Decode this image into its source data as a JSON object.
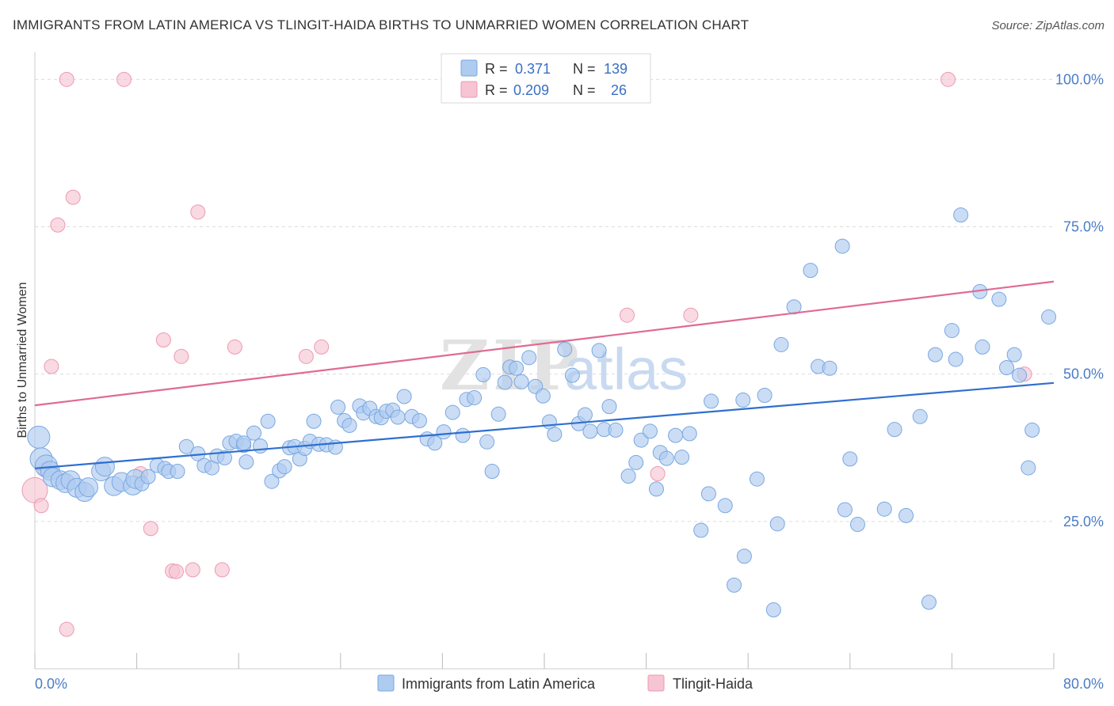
{
  "title": "IMMIGRANTS FROM LATIN AMERICA VS TLINGIT-HAIDA BIRTHS TO UNMARRIED WOMEN CORRELATION CHART",
  "source": "Source: ZipAtlas.com",
  "colors": {
    "blue": "#7aa7e0",
    "blue_fill": "#aecbf0",
    "blue_line": "#2f6fd0",
    "pink": "#ec9ab3",
    "pink_fill": "#f6c4d3",
    "pink_line": "#e06a93",
    "tick": "#4a7cc7"
  },
  "legend": {
    "r_label": "R =",
    "n_label": "N =",
    "blue_r": "0.371",
    "blue_n": "139",
    "pink_r": "0.209",
    "pink_n": "26"
  },
  "bottom_legend": {
    "blue": "Immigrants from Latin America",
    "pink": "Tlingit-Haida"
  },
  "watermark": {
    "zip": "ZIP",
    "atlas": "atlas"
  },
  "chart_data": {
    "type": "scatter",
    "title": "IMMIGRANTS FROM LATIN AMERICA VS TLINGIT-HAIDA BIRTHS TO UNMARRIED WOMEN CORRELATION CHART",
    "xlabel": "",
    "ylabel": "Births to Unmarried Women",
    "xlim": [
      0,
      80
    ],
    "ylim": [
      0,
      103
    ],
    "x_tick_labels": [
      "0.0%",
      "80.0%"
    ],
    "y_ticks": [
      25,
      50,
      75,
      100
    ],
    "y_tick_labels": [
      "25.0%",
      "50.0%",
      "75.0%",
      "100.0%"
    ],
    "grid": "horizontal dashed",
    "series": [
      {
        "name": "Immigrants from Latin America",
        "trend": [
          [
            0,
            34
          ],
          [
            80,
            48.5
          ]
        ],
        "points": [
          [
            0.3,
            39.3
          ],
          [
            0.5,
            35.6
          ],
          [
            0.9,
            34.4
          ],
          [
            1.2,
            33.6
          ],
          [
            1.4,
            32.5
          ],
          [
            2.0,
            32.0
          ],
          [
            2.4,
            31.5
          ],
          [
            2.8,
            32.0
          ],
          [
            3.3,
            30.7
          ],
          [
            3.9,
            30.0
          ],
          [
            4.2,
            30.8
          ],
          [
            5.2,
            33.5
          ],
          [
            5.5,
            34.3
          ],
          [
            6.2,
            31.0
          ],
          [
            6.8,
            31.7
          ],
          [
            7.7,
            31.1
          ],
          [
            7.9,
            32.2
          ],
          [
            8.4,
            31.4
          ],
          [
            8.9,
            32.6
          ],
          [
            9.6,
            34.5
          ],
          [
            10.2,
            34.0
          ],
          [
            10.5,
            33.5
          ],
          [
            11.2,
            33.5
          ],
          [
            11.9,
            37.7
          ],
          [
            12.8,
            36.5
          ],
          [
            13.3,
            34.5
          ],
          [
            13.9,
            34.1
          ],
          [
            14.3,
            36.1
          ],
          [
            14.9,
            35.8
          ],
          [
            15.3,
            38.3
          ],
          [
            15.8,
            38.6
          ],
          [
            16.4,
            37.9
          ],
          [
            16.4,
            38.3
          ],
          [
            16.6,
            35.1
          ],
          [
            17.2,
            40.0
          ],
          [
            17.7,
            37.8
          ],
          [
            18.3,
            42.0
          ],
          [
            18.6,
            31.8
          ],
          [
            19.2,
            33.6
          ],
          [
            19.6,
            34.3
          ],
          [
            20.0,
            37.5
          ],
          [
            20.4,
            37.7
          ],
          [
            20.8,
            35.6
          ],
          [
            21.2,
            37.4
          ],
          [
            21.6,
            38.6
          ],
          [
            21.9,
            42.0
          ],
          [
            22.3,
            38.1
          ],
          [
            22.9,
            38.0
          ],
          [
            23.6,
            37.6
          ],
          [
            23.8,
            44.4
          ],
          [
            24.3,
            42.1
          ],
          [
            24.7,
            41.3
          ],
          [
            25.5,
            44.6
          ],
          [
            25.8,
            43.4
          ],
          [
            26.3,
            44.2
          ],
          [
            26.8,
            42.8
          ],
          [
            27.2,
            42.6
          ],
          [
            27.6,
            43.7
          ],
          [
            28.1,
            43.9
          ],
          [
            28.5,
            42.7
          ],
          [
            29.0,
            46.2
          ],
          [
            29.6,
            42.8
          ],
          [
            30.2,
            42.1
          ],
          [
            30.8,
            39.0
          ],
          [
            31.4,
            38.3
          ],
          [
            32.1,
            40.2
          ],
          [
            32.8,
            43.5
          ],
          [
            33.6,
            39.6
          ],
          [
            33.9,
            45.7
          ],
          [
            34.5,
            46.0
          ],
          [
            35.2,
            49.9
          ],
          [
            35.5,
            38.5
          ],
          [
            35.9,
            33.5
          ],
          [
            36.4,
            43.2
          ],
          [
            36.9,
            48.6
          ],
          [
            37.3,
            51.2
          ],
          [
            37.8,
            51.0
          ],
          [
            38.2,
            48.7
          ],
          [
            38.8,
            52.8
          ],
          [
            39.3,
            47.9
          ],
          [
            39.9,
            46.3
          ],
          [
            40.4,
            41.9
          ],
          [
            40.8,
            39.8
          ],
          [
            41.6,
            54.2
          ],
          [
            42.2,
            49.8
          ],
          [
            42.7,
            41.6
          ],
          [
            43.2,
            43.1
          ],
          [
            43.6,
            40.3
          ],
          [
            44.3,
            54.0
          ],
          [
            44.7,
            40.6
          ],
          [
            45.1,
            44.5
          ],
          [
            45.6,
            40.5
          ],
          [
            46.6,
            32.7
          ],
          [
            47.2,
            35.0
          ],
          [
            47.6,
            38.8
          ],
          [
            48.3,
            40.3
          ],
          [
            48.8,
            30.5
          ],
          [
            49.1,
            36.7
          ],
          [
            49.6,
            35.7
          ],
          [
            50.3,
            39.6
          ],
          [
            50.8,
            35.9
          ],
          [
            51.4,
            39.9
          ],
          [
            52.3,
            23.5
          ],
          [
            52.9,
            29.7
          ],
          [
            53.1,
            45.4
          ],
          [
            54.2,
            27.7
          ],
          [
            54.9,
            14.2
          ],
          [
            55.6,
            45.6
          ],
          [
            55.7,
            19.1
          ],
          [
            56.7,
            32.2
          ],
          [
            57.3,
            46.4
          ],
          [
            58.0,
            10.0
          ],
          [
            58.3,
            24.6
          ],
          [
            58.6,
            55.0
          ],
          [
            59.6,
            61.4
          ],
          [
            60.9,
            67.6
          ],
          [
            61.5,
            51.3
          ],
          [
            62.4,
            51.0
          ],
          [
            63.4,
            71.7
          ],
          [
            63.6,
            27.0
          ],
          [
            64.0,
            35.6
          ],
          [
            64.6,
            24.5
          ],
          [
            66.7,
            27.1
          ],
          [
            67.5,
            40.6
          ],
          [
            68.4,
            26.0
          ],
          [
            69.5,
            42.8
          ],
          [
            70.2,
            11.3
          ],
          [
            70.7,
            53.3
          ],
          [
            72.0,
            57.4
          ],
          [
            72.3,
            52.5
          ],
          [
            72.7,
            77.0
          ],
          [
            74.2,
            64.0
          ],
          [
            74.4,
            54.6
          ],
          [
            75.7,
            62.7
          ],
          [
            76.3,
            51.1
          ],
          [
            76.9,
            53.3
          ],
          [
            77.3,
            49.8
          ],
          [
            78.0,
            34.1
          ],
          [
            78.3,
            40.5
          ],
          [
            79.6,
            59.7
          ]
        ]
      },
      {
        "name": "Tlingit-Haida",
        "trend": [
          [
            0,
            44.7
          ],
          [
            80,
            65.7
          ]
        ],
        "points": [
          [
            0.0,
            30.3
          ],
          [
            0.5,
            27.7
          ],
          [
            0.8,
            33.8
          ],
          [
            1.3,
            51.3
          ],
          [
            1.8,
            75.3
          ],
          [
            2.5,
            100
          ],
          [
            2.5,
            6.7
          ],
          [
            3.0,
            80.0
          ],
          [
            7.0,
            100
          ],
          [
            8.3,
            33.1
          ],
          [
            9.1,
            23.8
          ],
          [
            10.1,
            55.8
          ],
          [
            10.8,
            16.6
          ],
          [
            11.1,
            16.5
          ],
          [
            11.5,
            53.0
          ],
          [
            12.4,
            16.8
          ],
          [
            12.8,
            77.5
          ],
          [
            14.7,
            16.8
          ],
          [
            15.7,
            54.6
          ],
          [
            21.3,
            53.0
          ],
          [
            22.5,
            54.6
          ],
          [
            46.5,
            60.0
          ],
          [
            48.9,
            33.1
          ],
          [
            51.5,
            60.0
          ],
          [
            71.7,
            100
          ],
          [
            77.7,
            50.0
          ]
        ]
      }
    ]
  }
}
